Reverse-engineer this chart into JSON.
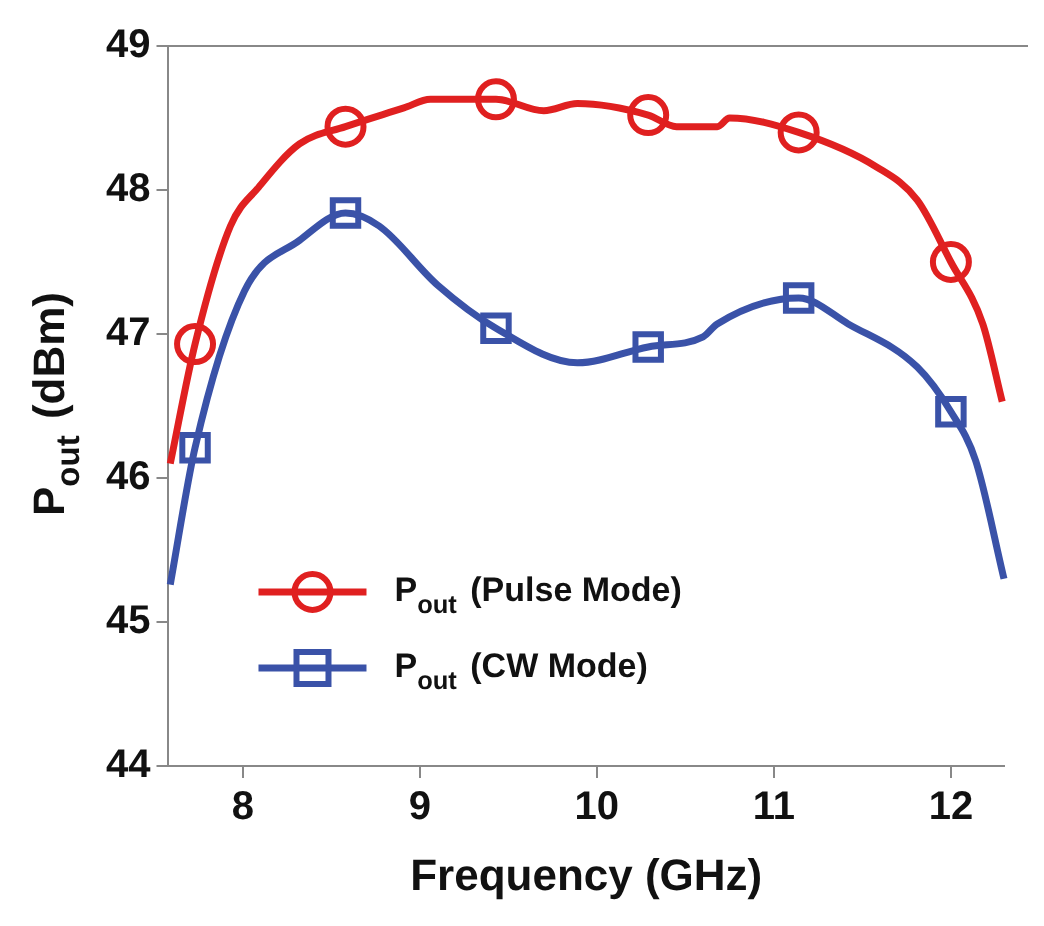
{
  "chart_data": {
    "type": "line",
    "xlabel": "Frequency (GHz)",
    "ylabel": "P$_{out}$ (dBm)",
    "xlim": [
      7.58,
      12.3
    ],
    "xticks": [
      8,
      9,
      10,
      11,
      12
    ],
    "ylim": [
      44,
      49
    ],
    "yticks": [
      44,
      45,
      46,
      47,
      48,
      49
    ],
    "grid": false,
    "legend": "bottom left",
    "line_style": "solid",
    "series": [
      {
        "color": "#e02020",
        "x": [
          7.59,
          7.73,
          7.93,
          8.09,
          8.32,
          8.58,
          8.91,
          9.06,
          9.43,
          9.7,
          9.89,
          10.29,
          10.45,
          10.68,
          10.75,
          11.14,
          11.58,
          11.81,
          12.0,
          12.18,
          12.29
        ],
        "values": [
          46.1,
          46.93,
          47.75,
          48.02,
          48.32,
          48.44,
          48.57,
          48.63,
          48.63,
          48.55,
          48.6,
          48.52,
          48.44,
          48.44,
          48.5,
          48.4,
          48.16,
          47.93,
          47.5,
          47.07,
          46.53
        ]
      },
      {
        "type": "scatter",
        "name": "P$_{out}$ (Pulse Mode)",
        "color": "#e02020",
        "marker": "circle",
        "x": [
          7.73,
          8.58,
          9.43,
          10.29,
          11.14,
          12.0
        ],
        "values": [
          46.93,
          48.44,
          48.63,
          48.52,
          48.4,
          47.5
        ]
      },
      {
        "color": "#3a52a8",
        "x": [
          7.59,
          7.73,
          8.01,
          8.32,
          8.58,
          8.77,
          9.1,
          9.43,
          9.89,
          10.29,
          10.6,
          10.68,
          11.14,
          11.42,
          11.81,
          12.0,
          12.14,
          12.3
        ],
        "values": [
          45.26,
          46.21,
          47.3,
          47.65,
          47.84,
          47.75,
          47.34,
          47.04,
          46.8,
          46.91,
          46.98,
          47.07,
          47.25,
          47.07,
          46.77,
          46.46,
          46.12,
          45.3
        ]
      },
      {
        "type": "scatter",
        "name": "P$_{out}$ (CW Mode)",
        "color": "#3a52a8",
        "marker": "square",
        "x": [
          7.73,
          8.58,
          9.43,
          10.29,
          11.14,
          12.0
        ],
        "values": [
          46.21,
          47.84,
          47.04,
          46.91,
          47.25,
          46.46
        ]
      }
    ]
  }
}
